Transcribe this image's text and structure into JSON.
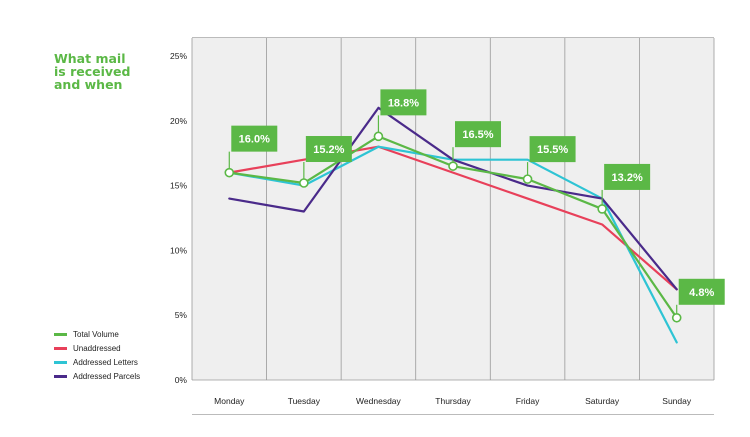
{
  "chart_data": {
    "type": "line",
    "title_lines": [
      "What mail",
      "is received",
      "and when"
    ],
    "categories": [
      "Monday",
      "Tuesday",
      "Wednesday",
      "Thursday",
      "Friday",
      "Saturday",
      "Sunday"
    ],
    "yticks": [
      "0%",
      "5%",
      "10%",
      "15%",
      "20%",
      "25%"
    ],
    "ylim": [
      0,
      25
    ],
    "grid": "vertical",
    "legend_position": "bottom-left",
    "series": [
      {
        "name": "Total Volume",
        "color": "#5bb846",
        "values": [
          16.0,
          15.2,
          18.8,
          16.5,
          15.5,
          13.2,
          4.8
        ],
        "markers": true
      },
      {
        "name": "Unaddressed",
        "color": "#e8405a",
        "values": [
          16.0,
          17.0,
          18.0,
          16.0,
          14.0,
          12.0,
          7.0
        ]
      },
      {
        "name": "Addressed Letters",
        "color": "#2ec4d4",
        "values": [
          16.0,
          15.0,
          18.0,
          17.0,
          17.0,
          14.0,
          2.9
        ]
      },
      {
        "name": "Addressed Parcels",
        "color": "#4a2a8a",
        "values": [
          14.0,
          13.0,
          21.0,
          17.0,
          15.0,
          14.0,
          7.0
        ]
      }
    ],
    "data_labels": [
      "16.0%",
      "15.2%",
      "18.8%",
      "16.5%",
      "15.5%",
      "13.2%",
      "4.8%"
    ],
    "label_color": "#5bb846",
    "plot_bg": "#efefef",
    "grid_color": "#9a9a9a"
  }
}
